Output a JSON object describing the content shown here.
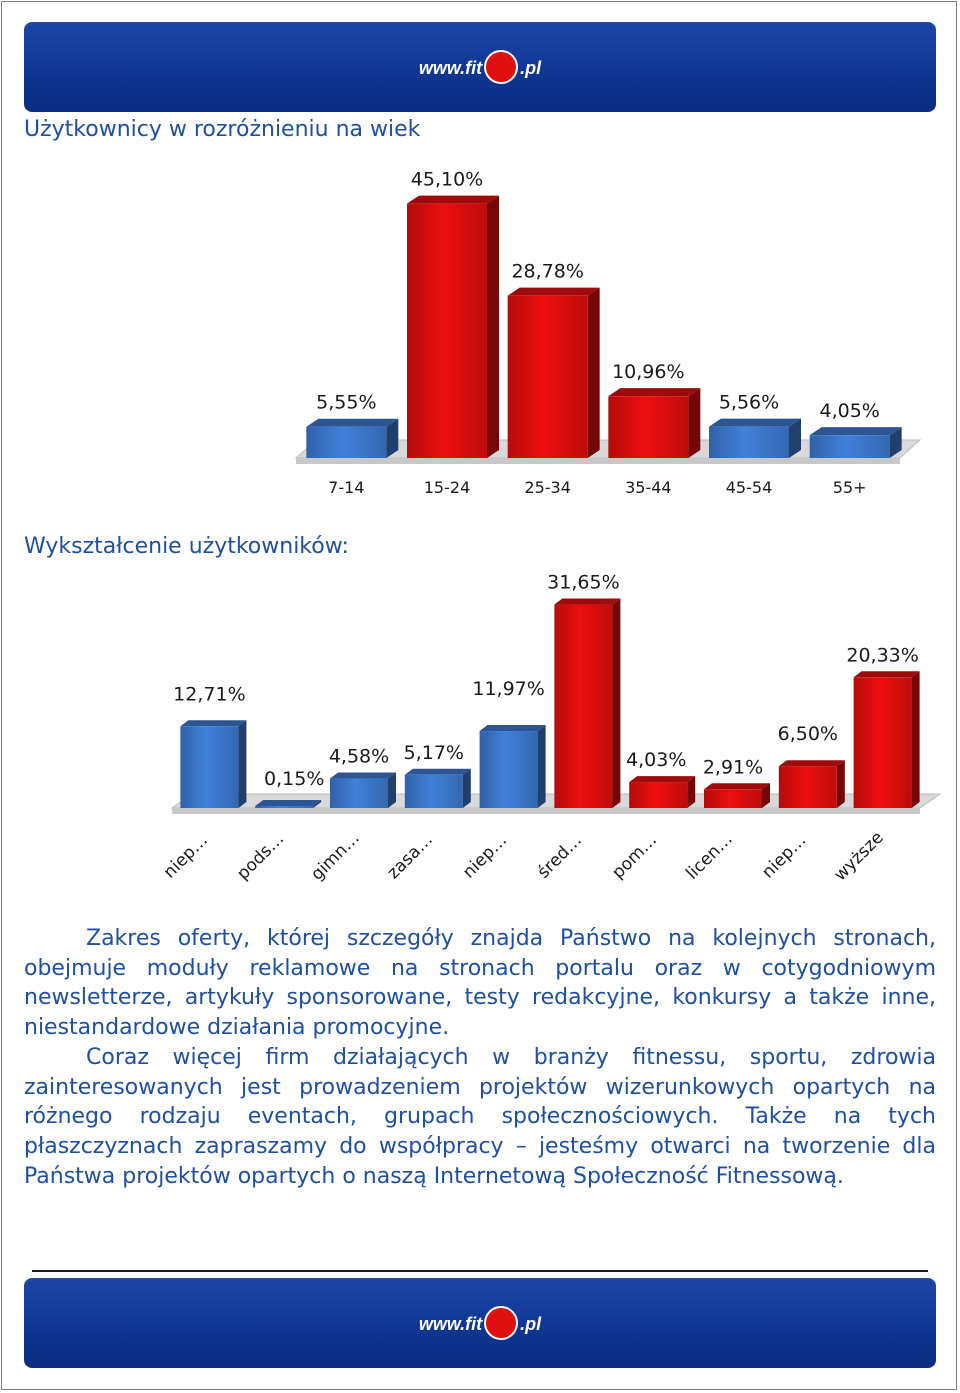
{
  "header": {
    "logo_text": "www.fit",
    "logo_suffix": ".pl"
  },
  "footer": {
    "logo_text": "www.fit",
    "logo_suffix": ".pl"
  },
  "section1": {
    "heading": "Użytkownicy w rozróżnieniu na wiek"
  },
  "section2": {
    "heading": "Wykształcenie użytkowników:"
  },
  "chart_data": [
    {
      "type": "bar",
      "categories": [
        "7-14",
        "15-24",
        "25-34",
        "35-44",
        "45-54",
        "55+"
      ],
      "values": [
        5.55,
        45.1,
        28.78,
        10.96,
        5.56,
        4.05
      ],
      "data_labels": [
        "5,55%",
        "45,10%",
        "28,78%",
        "10,96%",
        "5,56%",
        "4,05%"
      ],
      "colors": [
        "#3a72c4",
        "#d40d0d",
        "#d40d0d",
        "#d40d0d",
        "#3a72c4",
        "#3a72c4"
      ],
      "ylim": [
        0,
        50
      ],
      "grid": false,
      "legend": "none"
    },
    {
      "type": "bar",
      "categories": [
        "niep…",
        "pods…",
        "gimn…",
        "zasa…",
        "niep…",
        "śred…",
        "pom…",
        "licen…",
        "niep…",
        "wyższe"
      ],
      "values": [
        12.71,
        0.15,
        4.58,
        5.17,
        11.97,
        31.65,
        4.03,
        2.91,
        6.5,
        20.33
      ],
      "data_labels": [
        "12,71%",
        "0,15%",
        "4,58%",
        "5,17%",
        "11,97%",
        "31,65%",
        "4,03%",
        "2,91%",
        "6,50%",
        "20,33%"
      ],
      "colors": [
        "#3a72c4",
        "#3a72c4",
        "#3a72c4",
        "#3a72c4",
        "#3a72c4",
        "#d40d0d",
        "#d40d0d",
        "#d40d0d",
        "#d40d0d",
        "#d40d0d"
      ],
      "ylim": [
        0,
        35
      ],
      "grid": false,
      "legend": "none"
    }
  ],
  "paragraphs": [
    "Zakres oferty, której szczegóły znajda Państwo na kolejnych stronach, obejmuje moduły reklamowe  na stronach portalu oraz w cotygodniowym newsletterze, artykuły sponsorowane, testy redakcyjne, konkursy a także inne, niestandardowe działania promocyjne.",
    "Coraz więcej firm działających w branży fitnessu, sportu, zdrowia zainteresowanych  jest prowadzeniem projektów wizerunkowych opartych na różnego rodzaju eventach, grupach społecznościowych. Także na tych płaszczyznach zapraszamy do współpracy – jesteśmy otwarci na tworzenie dla Państwa projektów opartych o naszą Internetową Społeczność Fitnessową."
  ]
}
